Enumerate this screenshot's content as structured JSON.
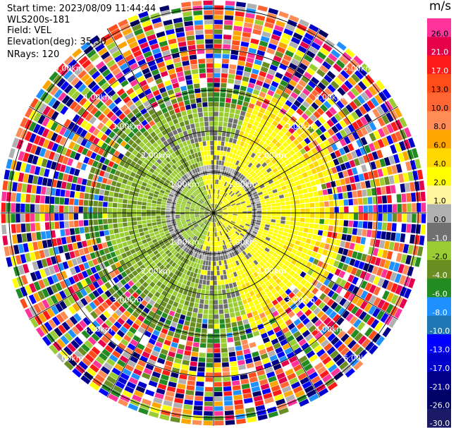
{
  "info": {
    "start_time": "Start time: 2023/08/09 11:44:44",
    "station": "WLS200s-181",
    "field": "Field: VEL",
    "elevation": "Elevation(deg): 35.30",
    "nrays": "NRays: 120"
  },
  "colorbar": {
    "unit": "m/s",
    "bins": [
      {
        "label": "26.0",
        "color": "#ff3399"
      },
      {
        "label": "21.0",
        "color": "#e6004c"
      },
      {
        "label": "17.0",
        "color": "#ff1a1a"
      },
      {
        "label": "13.0",
        "color": "#ff4d1a"
      },
      {
        "label": "10.0",
        "color": "#ff6633"
      },
      {
        "label": "8.0",
        "color": "#ff8c55"
      },
      {
        "label": "6.0",
        "color": "#ffa500"
      },
      {
        "label": "4.0",
        "color": "#ffd700"
      },
      {
        "label": "2.0",
        "color": "#ffff00"
      },
      {
        "label": "1.0",
        "color": "#fff59d"
      },
      {
        "label": "0.0",
        "color": "#b0b0b0"
      },
      {
        "label": "-1.0",
        "color": "#707070"
      },
      {
        "label": "-2.0",
        "color": "#9acd32"
      },
      {
        "label": "-4.0",
        "color": "#6b8e23"
      },
      {
        "label": "-6.0",
        "color": "#228b22"
      },
      {
        "label": "-8.0",
        "color": "#1e90ff"
      },
      {
        "label": "-10.0",
        "color": "#1f78b4"
      },
      {
        "label": "-13.0",
        "color": "#0000ff"
      },
      {
        "label": "-17.0",
        "color": "#0000cd"
      },
      {
        "label": "-21.0",
        "color": "#00008b"
      },
      {
        "label": "-26.0",
        "color": "#000066"
      },
      {
        "label": "-30.0",
        "color": "#1a1a66"
      }
    ]
  },
  "chart_data": {
    "type": "heatmap",
    "rays": 120,
    "range_rings": [
      {
        "label": "1.00km",
        "value": 1.0
      },
      {
        "label": "2.00km",
        "value": 2.0
      },
      {
        "label": "3.00km",
        "value": 3.0
      },
      {
        "label": "4.00km",
        "value": 4.0
      },
      {
        "label": "5.00km",
        "value": 5.0
      }
    ],
    "max_range_km": 5.2
  }
}
